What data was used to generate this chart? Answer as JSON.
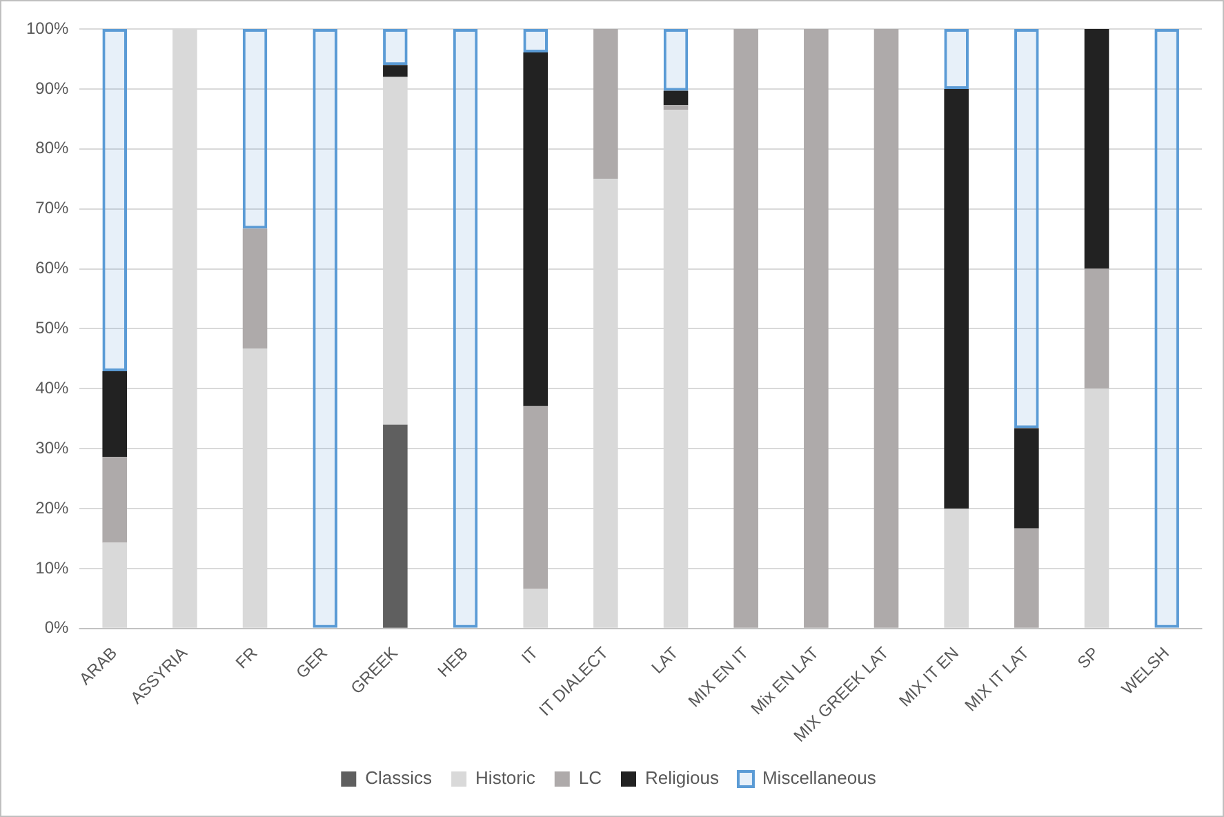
{
  "chart_data": {
    "type": "bar",
    "stacked": true,
    "grid": "y",
    "legend": "bottom",
    "categories": [
      "ARAB",
      "ASSYRIA",
      "FR",
      "GER",
      "GREEK",
      "HEB",
      "IT",
      "IT DIALECT",
      "LAT",
      "MIX EN IT",
      "Mix EN LAT",
      "MIX GREEK LAT",
      "MIX IT EN",
      "MIX IT LAT",
      "SP",
      "WELSH"
    ],
    "ylim": [
      0,
      100
    ],
    "yticks": [
      {
        "value": 0,
        "label": "0%"
      },
      {
        "value": 10,
        "label": "10%"
      },
      {
        "value": 20,
        "label": "20%"
      },
      {
        "value": 30,
        "label": "30%"
      },
      {
        "value": 40,
        "label": "40%"
      },
      {
        "value": 50,
        "label": "50%"
      },
      {
        "value": 60,
        "label": "60%"
      },
      {
        "value": 70,
        "label": "70%"
      },
      {
        "value": 80,
        "label": "80%"
      },
      {
        "value": 90,
        "label": "90%"
      },
      {
        "value": 100,
        "label": "100%"
      }
    ],
    "series": [
      {
        "name": "Classics",
        "color": "#5f5f5f",
        "values": [
          0,
          0,
          0,
          0,
          34,
          0,
          0,
          0,
          0,
          0,
          0,
          0,
          0,
          0,
          0,
          0
        ]
      },
      {
        "name": "Historic",
        "color": "#d9d9d9",
        "values": [
          14.3,
          100,
          46.7,
          0,
          58,
          0,
          6.6,
          75,
          86.5,
          0,
          0,
          0,
          20,
          0,
          40,
          0
        ]
      },
      {
        "name": "LC",
        "color": "#aeaaaa",
        "values": [
          14.3,
          0,
          20,
          0,
          0,
          0,
          30.5,
          25,
          0.8,
          100,
          100,
          100,
          0,
          16.7,
          20,
          0
        ]
      },
      {
        "name": "Religious",
        "color": "#222222",
        "values": [
          14.3,
          0,
          0,
          0,
          2,
          0,
          59,
          0,
          2.4,
          0,
          0,
          0,
          70,
          16.7,
          40,
          0
        ]
      },
      {
        "name": "Miscellaneous",
        "color": "#5b9bd5",
        "values": [
          57.1,
          0,
          33.3,
          100,
          6,
          100,
          3.9,
          0,
          10.3,
          0,
          0,
          0,
          10,
          66.6,
          0,
          100
        ]
      }
    ]
  }
}
